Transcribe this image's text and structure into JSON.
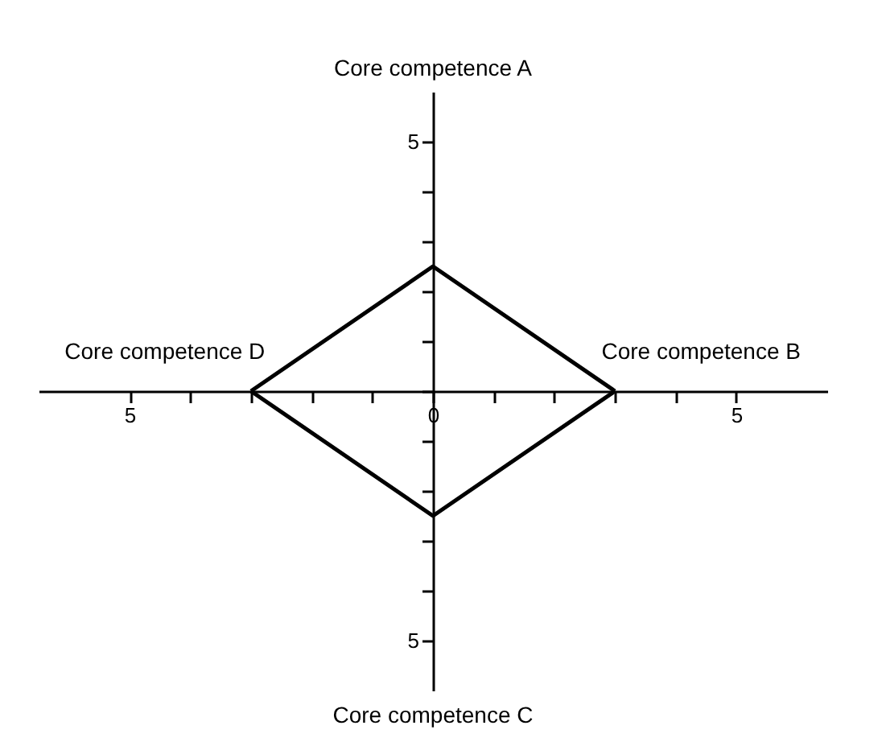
{
  "chart_data": {
    "type": "line",
    "series": [
      {
        "color": "#000000",
        "x": [
          -3,
          0,
          3
        ],
        "values": [
          0,
          2.5,
          0
        ]
      },
      {
        "color": "#000000",
        "x": [
          -3,
          0,
          3
        ],
        "values": [
          0,
          -2.5,
          0
        ]
      }
    ],
    "xlim": [
      -6.5,
      6.5
    ],
    "ylim": [
      -6,
      6
    ],
    "xticks": [
      {
        "value": -5,
        "label": "5"
      },
      {
        "value": -4,
        "label": null
      },
      {
        "value": -3,
        "label": null
      },
      {
        "value": -2,
        "label": null
      },
      {
        "value": -1,
        "label": null
      },
      0,
      {
        "value": 1,
        "label": null
      },
      {
        "value": 2,
        "label": null
      },
      {
        "value": 3,
        "label": null
      },
      {
        "value": 4,
        "label": null
      },
      5
    ],
    "yticks": [
      {
        "value": -5,
        "label": "5"
      },
      {
        "value": -4,
        "label": null
      },
      {
        "value": -3,
        "label": null
      },
      {
        "value": -2,
        "label": null
      },
      {
        "value": -1,
        "label": null
      },
      {
        "value": 0,
        "label": null
      },
      {
        "value": 1,
        "label": null
      },
      {
        "value": 2,
        "label": null
      },
      {
        "value": 3,
        "label": null
      },
      {
        "value": 4,
        "label": null
      },
      5
    ],
    "annotations": [
      "Core competence A",
      "Core competence B",
      "Core competence C",
      "Core competence D"
    ],
    "marker": "none",
    "line_style": "solid"
  }
}
